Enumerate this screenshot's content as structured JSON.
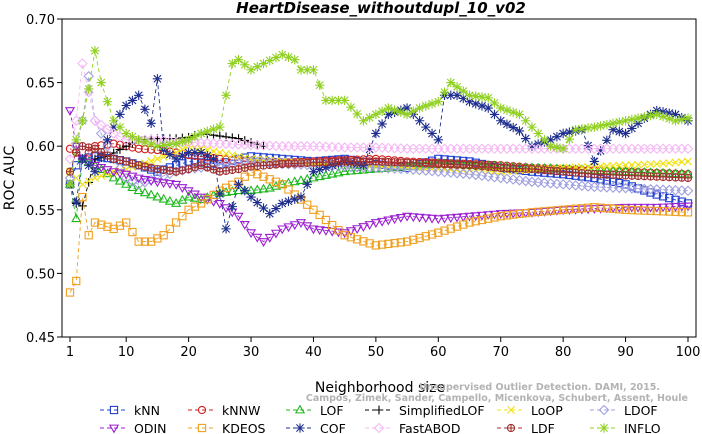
{
  "chart_data": {
    "type": "line",
    "title": "HeartDisease_withoutdupl_10_v02",
    "xlabel": "Neighborhood size",
    "ylabel": "ROC AUC",
    "xlim": [
      0,
      100
    ],
    "ylim": [
      0.45,
      0.7
    ],
    "x_ticks": [
      1,
      10,
      20,
      30,
      40,
      50,
      60,
      70,
      80,
      90,
      100
    ],
    "x_tick_labels": [
      "1",
      "10",
      "20",
      "30",
      "40",
      "50",
      "60",
      "70",
      "80",
      "90",
      "100"
    ],
    "y_ticks": [
      0.45,
      0.5,
      0.55,
      0.6,
      0.65,
      0.7
    ],
    "y_tick_labels": [
      "0.45",
      "0.50",
      "0.55",
      "0.60",
      "0.65",
      "0.70"
    ],
    "grid": false,
    "legend_position": "bottom",
    "watermark": [
      "Unsupervised Outlier Detection. DAMI, 2015.",
      "Campos, Zimek, Sander, Campello, Micenkova, Schubert, Assent, Houle"
    ],
    "series": [
      {
        "name": "kNN",
        "color": "#1f3fd1",
        "marker": "square",
        "x": [
          1,
          2,
          3,
          5,
          8,
          10,
          12,
          15,
          18,
          20,
          25,
          28,
          30,
          35,
          40,
          45,
          50,
          55,
          60,
          65,
          70,
          75,
          80,
          85,
          90,
          95,
          100
        ],
        "y": [
          0.57,
          0.585,
          0.59,
          0.592,
          0.59,
          0.588,
          0.585,
          0.58,
          0.585,
          0.588,
          0.586,
          0.59,
          0.592,
          0.59,
          0.588,
          0.59,
          0.586,
          0.583,
          0.59,
          0.588,
          0.583,
          0.58,
          0.578,
          0.575,
          0.57,
          0.562,
          0.555
        ]
      },
      {
        "name": "kNNW",
        "color": "#d11f1f",
        "marker": "circle",
        "x": [
          1,
          2,
          3,
          5,
          8,
          10,
          12,
          15,
          18,
          20,
          25,
          30,
          35,
          40,
          45,
          50,
          55,
          60,
          65,
          70,
          75,
          80,
          85,
          90,
          95,
          100
        ],
        "y": [
          0.598,
          0.595,
          0.59,
          0.6,
          0.602,
          0.6,
          0.598,
          0.597,
          0.595,
          0.593,
          0.59,
          0.588,
          0.587,
          0.588,
          0.589,
          0.59,
          0.588,
          0.587,
          0.586,
          0.585,
          0.583,
          0.582,
          0.581,
          0.58,
          0.579,
          0.578
        ]
      },
      {
        "name": "LOF",
        "color": "#1fb81f",
        "marker": "triangle",
        "x": [
          1,
          2,
          3,
          5,
          8,
          10,
          12,
          15,
          18,
          20,
          22,
          25,
          28,
          30,
          33,
          35,
          40,
          45,
          50,
          55,
          60,
          65,
          70,
          75,
          80,
          85,
          90,
          95,
          100
        ],
        "y": [
          0.57,
          0.543,
          0.59,
          0.585,
          0.575,
          0.57,
          0.565,
          0.56,
          0.555,
          0.56,
          0.558,
          0.563,
          0.565,
          0.565,
          0.567,
          0.57,
          0.575,
          0.58,
          0.582,
          0.584,
          0.586,
          0.585,
          0.584,
          0.583,
          0.582,
          0.581,
          0.58,
          0.579,
          0.578
        ]
      },
      {
        "name": "SimplifiedLOF",
        "color": "#000000",
        "marker": "plus",
        "x": [
          1,
          2,
          3,
          5,
          7,
          10,
          12,
          15,
          18,
          20,
          22,
          25,
          28,
          30,
          32
        ],
        "y": [
          0.57,
          0.555,
          0.553,
          0.59,
          0.592,
          0.6,
          0.605,
          0.606,
          0.606,
          0.607,
          0.61,
          0.608,
          0.606,
          0.603,
          0.6
        ]
      },
      {
        "name": "LoOP",
        "color": "#f0e010",
        "marker": "x",
        "x": [
          1,
          2,
          3,
          5,
          8,
          10,
          12,
          15,
          18,
          20,
          25,
          30,
          35,
          40,
          45,
          50,
          55,
          60,
          65,
          70,
          75,
          80,
          85,
          90,
          95,
          100
        ],
        "y": [
          0.58,
          0.575,
          0.57,
          0.575,
          0.58,
          0.582,
          0.585,
          0.59,
          0.595,
          0.6,
          0.595,
          0.59,
          0.588,
          0.586,
          0.585,
          0.584,
          0.583,
          0.582,
          0.581,
          0.58,
          0.582,
          0.583,
          0.584,
          0.585,
          0.586,
          0.588
        ]
      },
      {
        "name": "LDOF",
        "color": "#a0a0e0",
        "marker": "diamond",
        "x": [
          1,
          2,
          3,
          4,
          5,
          8,
          10,
          12,
          15,
          18,
          20,
          25,
          30,
          35,
          40,
          45,
          50,
          55,
          60,
          65,
          70,
          75,
          80,
          85,
          90,
          95,
          100
        ],
        "y": [
          0.575,
          0.6,
          0.62,
          0.655,
          0.62,
          0.59,
          0.575,
          0.57,
          0.575,
          0.58,
          0.582,
          0.585,
          0.588,
          0.586,
          0.585,
          0.584,
          0.583,
          0.582,
          0.58,
          0.578,
          0.575,
          0.572,
          0.57,
          0.568,
          0.567,
          0.566,
          0.565
        ]
      },
      {
        "name": "ODIN",
        "color": "#9b1fd1",
        "marker": "triangle-down",
        "x": [
          1,
          2,
          3,
          5,
          8,
          10,
          12,
          15,
          18,
          20,
          22,
          25,
          28,
          30,
          32,
          35,
          38,
          40,
          45,
          50,
          55,
          60,
          65,
          70,
          75,
          80,
          85,
          90,
          95,
          100
        ],
        "y": [
          0.628,
          0.6,
          0.59,
          0.585,
          0.58,
          0.578,
          0.575,
          0.572,
          0.57,
          0.565,
          0.56,
          0.555,
          0.545,
          0.532,
          0.525,
          0.535,
          0.54,
          0.535,
          0.532,
          0.54,
          0.545,
          0.543,
          0.545,
          0.547,
          0.548,
          0.55,
          0.551,
          0.552,
          0.552,
          0.553
        ]
      },
      {
        "name": "KDEOS",
        "color": "#f0a020",
        "marker": "square",
        "x": [
          1,
          2,
          3,
          4,
          5,
          8,
          10,
          12,
          14,
          16,
          18,
          20,
          22,
          25,
          28,
          30,
          35,
          40,
          45,
          50,
          55,
          60,
          65,
          70,
          75,
          80,
          85,
          90,
          95,
          100
        ],
        "y": [
          0.485,
          0.494,
          0.56,
          0.53,
          0.54,
          0.535,
          0.54,
          0.525,
          0.525,
          0.53,
          0.54,
          0.55,
          0.555,
          0.565,
          0.572,
          0.58,
          0.57,
          0.55,
          0.53,
          0.522,
          0.525,
          0.532,
          0.54,
          0.545,
          0.548,
          0.55,
          0.552,
          0.55,
          0.549,
          0.548
        ]
      },
      {
        "name": "COF",
        "color": "#1f2f8f",
        "marker": "star",
        "x": [
          1,
          2,
          3,
          5,
          7,
          9,
          10,
          12,
          14,
          15,
          16,
          18,
          20,
          22,
          24,
          26,
          28,
          30,
          33,
          35,
          38,
          40,
          43,
          45,
          48,
          50,
          52,
          55,
          57,
          60,
          61,
          63,
          65,
          68,
          70,
          73,
          75,
          78,
          80,
          83,
          85,
          88,
          90,
          93,
          95,
          98,
          100
        ],
        "y": [
          0.57,
          0.556,
          0.59,
          0.58,
          0.605,
          0.625,
          0.632,
          0.64,
          0.618,
          0.653,
          0.597,
          0.59,
          0.595,
          0.595,
          0.59,
          0.535,
          0.57,
          0.56,
          0.547,
          0.555,
          0.56,
          0.58,
          0.585,
          0.588,
          0.585,
          0.61,
          0.625,
          0.63,
          0.62,
          0.605,
          0.64,
          0.64,
          0.635,
          0.63,
          0.62,
          0.612,
          0.6,
          0.605,
          0.61,
          0.613,
          0.588,
          0.613,
          0.61,
          0.622,
          0.628,
          0.625,
          0.62
        ]
      },
      {
        "name": "FastABOD",
        "color": "#f5b8f5",
        "marker": "diamond",
        "x": [
          1,
          2,
          3,
          5,
          8,
          10,
          12,
          15,
          18,
          20,
          25,
          30,
          35,
          40,
          45,
          50,
          55,
          60,
          65,
          70,
          75,
          80,
          85,
          90,
          95,
          100
        ],
        "y": [
          0.59,
          0.62,
          0.665,
          0.62,
          0.61,
          0.605,
          0.605,
          0.605,
          0.603,
          0.603,
          0.602,
          0.601,
          0.6,
          0.6,
          0.599,
          0.599,
          0.598,
          0.598,
          0.598,
          0.598,
          0.598,
          0.598,
          0.598,
          0.598,
          0.598,
          0.598
        ]
      },
      {
        "name": "LDF",
        "color": "#a03030",
        "marker": "circle-plus",
        "x": [
          1,
          2,
          3,
          5,
          8,
          10,
          12,
          15,
          18,
          20,
          22,
          25,
          28,
          30,
          35,
          40,
          45,
          50,
          55,
          60,
          65,
          70,
          75,
          80,
          85,
          90,
          95,
          100
        ],
        "y": [
          0.58,
          0.595,
          0.6,
          0.598,
          0.59,
          0.588,
          0.585,
          0.582,
          0.58,
          0.582,
          0.585,
          0.58,
          0.582,
          0.584,
          0.586,
          0.587,
          0.588,
          0.588,
          0.587,
          0.586,
          0.585,
          0.583,
          0.582,
          0.58,
          0.578,
          0.577,
          0.576,
          0.575
        ]
      },
      {
        "name": "INFLO",
        "color": "#90d020",
        "marker": "star",
        "x": [
          1,
          2,
          3,
          4,
          5,
          6,
          8,
          10,
          12,
          15,
          18,
          20,
          22,
          25,
          27,
          28,
          30,
          32,
          35,
          37,
          38,
          40,
          42,
          45,
          48,
          50,
          52,
          55,
          57,
          60,
          62,
          65,
          68,
          70,
          73,
          75,
          78,
          80,
          82,
          85,
          88,
          90,
          92,
          95,
          98,
          100
        ],
        "y": [
          0.57,
          0.605,
          0.62,
          0.645,
          0.675,
          0.65,
          0.62,
          0.61,
          0.605,
          0.6,
          0.602,
          0.605,
          0.61,
          0.615,
          0.665,
          0.668,
          0.66,
          0.665,
          0.672,
          0.668,
          0.66,
          0.66,
          0.636,
          0.636,
          0.62,
          0.625,
          0.63,
          0.625,
          0.63,
          0.635,
          0.65,
          0.64,
          0.638,
          0.63,
          0.625,
          0.615,
          0.6,
          0.598,
          0.613,
          0.615,
          0.618,
          0.62,
          0.622,
          0.625,
          0.62,
          0.622
        ]
      }
    ]
  }
}
